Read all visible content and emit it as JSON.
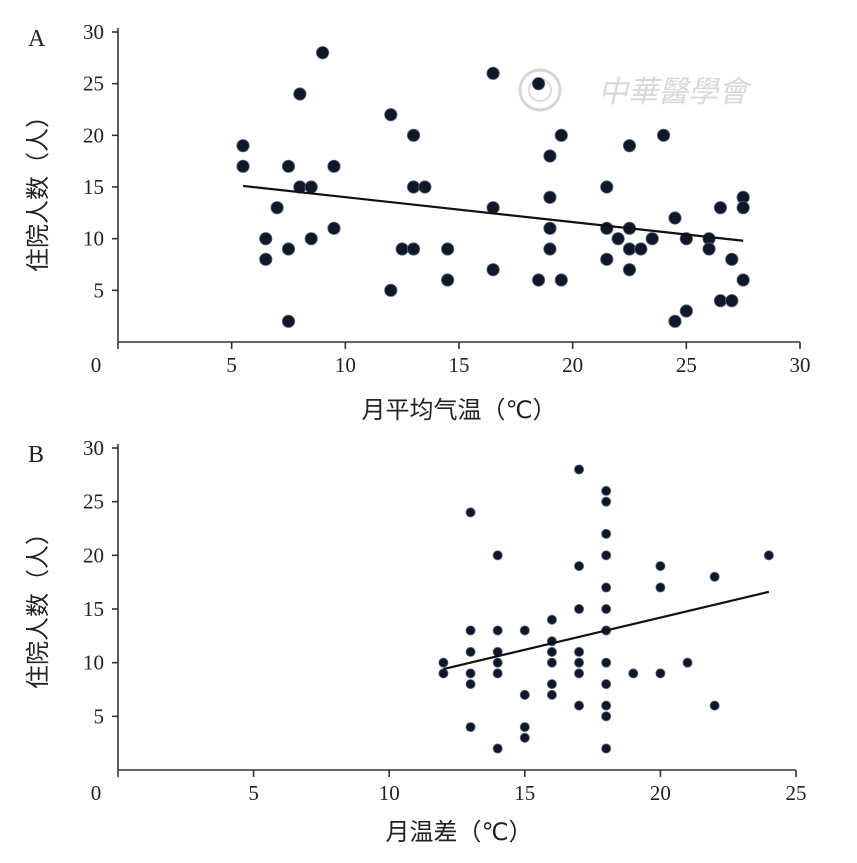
{
  "chart_data": [
    {
      "panel": "A",
      "type": "scatter",
      "xlabel": "月平均气温（℃）",
      "ylabel": "住院人数（人）",
      "xlim": [
        0,
        30
      ],
      "ylim": [
        0,
        30
      ],
      "xticks": [
        0,
        5,
        10,
        15,
        20,
        25,
        30
      ],
      "yticks": [
        5,
        10,
        15,
        20,
        25,
        30
      ],
      "grid": false,
      "marker_color": "#101828",
      "points": [
        {
          "x": 5.5,
          "y": 19
        },
        {
          "x": 5.5,
          "y": 17
        },
        {
          "x": 6.5,
          "y": 10
        },
        {
          "x": 6.5,
          "y": 8
        },
        {
          "x": 7,
          "y": 13
        },
        {
          "x": 7.5,
          "y": 17
        },
        {
          "x": 7.5,
          "y": 9
        },
        {
          "x": 7.5,
          "y": 2
        },
        {
          "x": 8,
          "y": 24
        },
        {
          "x": 8,
          "y": 15
        },
        {
          "x": 8.5,
          "y": 15
        },
        {
          "x": 8.5,
          "y": 10
        },
        {
          "x": 9,
          "y": 28
        },
        {
          "x": 9.5,
          "y": 17
        },
        {
          "x": 9.5,
          "y": 11
        },
        {
          "x": 12,
          "y": 22
        },
        {
          "x": 12,
          "y": 5
        },
        {
          "x": 12.5,
          "y": 9
        },
        {
          "x": 13,
          "y": 20
        },
        {
          "x": 13,
          "y": 15
        },
        {
          "x": 13,
          "y": 9
        },
        {
          "x": 13.5,
          "y": 15
        },
        {
          "x": 14.5,
          "y": 9
        },
        {
          "x": 14.5,
          "y": 6
        },
        {
          "x": 16.5,
          "y": 26
        },
        {
          "x": 16.5,
          "y": 13
        },
        {
          "x": 16.5,
          "y": 7
        },
        {
          "x": 18.5,
          "y": 25
        },
        {
          "x": 18.5,
          "y": 6
        },
        {
          "x": 19,
          "y": 18
        },
        {
          "x": 19,
          "y": 14
        },
        {
          "x": 19,
          "y": 11
        },
        {
          "x": 19,
          "y": 9
        },
        {
          "x": 19.5,
          "y": 20
        },
        {
          "x": 19.5,
          "y": 6
        },
        {
          "x": 21.5,
          "y": 15
        },
        {
          "x": 21.5,
          "y": 11
        },
        {
          "x": 21.5,
          "y": 8
        },
        {
          "x": 22,
          "y": 10
        },
        {
          "x": 22.5,
          "y": 19
        },
        {
          "x": 22.5,
          "y": 11
        },
        {
          "x": 22.5,
          "y": 9
        },
        {
          "x": 22.5,
          "y": 7
        },
        {
          "x": 23,
          "y": 9
        },
        {
          "x": 23.5,
          "y": 10
        },
        {
          "x": 24,
          "y": 20
        },
        {
          "x": 24.5,
          "y": 12
        },
        {
          "x": 24.5,
          "y": 2
        },
        {
          "x": 25,
          "y": 10
        },
        {
          "x": 25,
          "y": 3
        },
        {
          "x": 26,
          "y": 10
        },
        {
          "x": 26,
          "y": 9
        },
        {
          "x": 26.5,
          "y": 13
        },
        {
          "x": 26.5,
          "y": 4
        },
        {
          "x": 27,
          "y": 8
        },
        {
          "x": 27,
          "y": 4
        },
        {
          "x": 27.5,
          "y": 14
        },
        {
          "x": 27.5,
          "y": 13
        },
        {
          "x": 27.5,
          "y": 6
        }
      ],
      "trendline": {
        "x": [
          5.5,
          27.5
        ],
        "y": [
          15.1,
          9.8
        ]
      }
    },
    {
      "panel": "B",
      "type": "scatter",
      "xlabel": "月温差（℃）",
      "ylabel": "住院人数（人）",
      "xlim": [
        0,
        25
      ],
      "ylim": [
        0,
        30
      ],
      "xticks": [
        0,
        5,
        10,
        15,
        20,
        25
      ],
      "yticks": [
        5,
        10,
        15,
        20,
        25,
        30
      ],
      "grid": false,
      "marker_color": "#101828",
      "points": [
        {
          "x": 12,
          "y": 10
        },
        {
          "x": 12,
          "y": 9
        },
        {
          "x": 13,
          "y": 24
        },
        {
          "x": 13,
          "y": 13
        },
        {
          "x": 13,
          "y": 11
        },
        {
          "x": 13,
          "y": 9
        },
        {
          "x": 13,
          "y": 8
        },
        {
          "x": 13,
          "y": 4
        },
        {
          "x": 14,
          "y": 20
        },
        {
          "x": 14,
          "y": 13
        },
        {
          "x": 14,
          "y": 11
        },
        {
          "x": 14,
          "y": 10
        },
        {
          "x": 14,
          "y": 9
        },
        {
          "x": 14,
          "y": 2
        },
        {
          "x": 15,
          "y": 13
        },
        {
          "x": 15,
          "y": 7
        },
        {
          "x": 15,
          "y": 4
        },
        {
          "x": 15,
          "y": 3
        },
        {
          "x": 16,
          "y": 14
        },
        {
          "x": 16,
          "y": 12
        },
        {
          "x": 16,
          "y": 11
        },
        {
          "x": 16,
          "y": 10
        },
        {
          "x": 16,
          "y": 8
        },
        {
          "x": 16,
          "y": 7
        },
        {
          "x": 17,
          "y": 28
        },
        {
          "x": 17,
          "y": 19
        },
        {
          "x": 17,
          "y": 15
        },
        {
          "x": 17,
          "y": 11
        },
        {
          "x": 17,
          "y": 10
        },
        {
          "x": 17,
          "y": 9
        },
        {
          "x": 17,
          "y": 6
        },
        {
          "x": 18,
          "y": 26
        },
        {
          "x": 18,
          "y": 25
        },
        {
          "x": 18,
          "y": 22
        },
        {
          "x": 18,
          "y": 20
        },
        {
          "x": 18,
          "y": 17
        },
        {
          "x": 18,
          "y": 15
        },
        {
          "x": 18,
          "y": 13
        },
        {
          "x": 18,
          "y": 10
        },
        {
          "x": 18,
          "y": 8
        },
        {
          "x": 18,
          "y": 6
        },
        {
          "x": 18,
          "y": 5
        },
        {
          "x": 18,
          "y": 2
        },
        {
          "x": 19,
          "y": 9
        },
        {
          "x": 20,
          "y": 19
        },
        {
          "x": 20,
          "y": 17
        },
        {
          "x": 20,
          "y": 9
        },
        {
          "x": 21,
          "y": 10
        },
        {
          "x": 22,
          "y": 18
        },
        {
          "x": 22,
          "y": 6
        },
        {
          "x": 24,
          "y": 20
        }
      ],
      "trendline": {
        "x": [
          12,
          24
        ],
        "y": [
          9.4,
          16.6
        ]
      }
    }
  ],
  "watermark": {
    "text": "中華醫學會"
  }
}
